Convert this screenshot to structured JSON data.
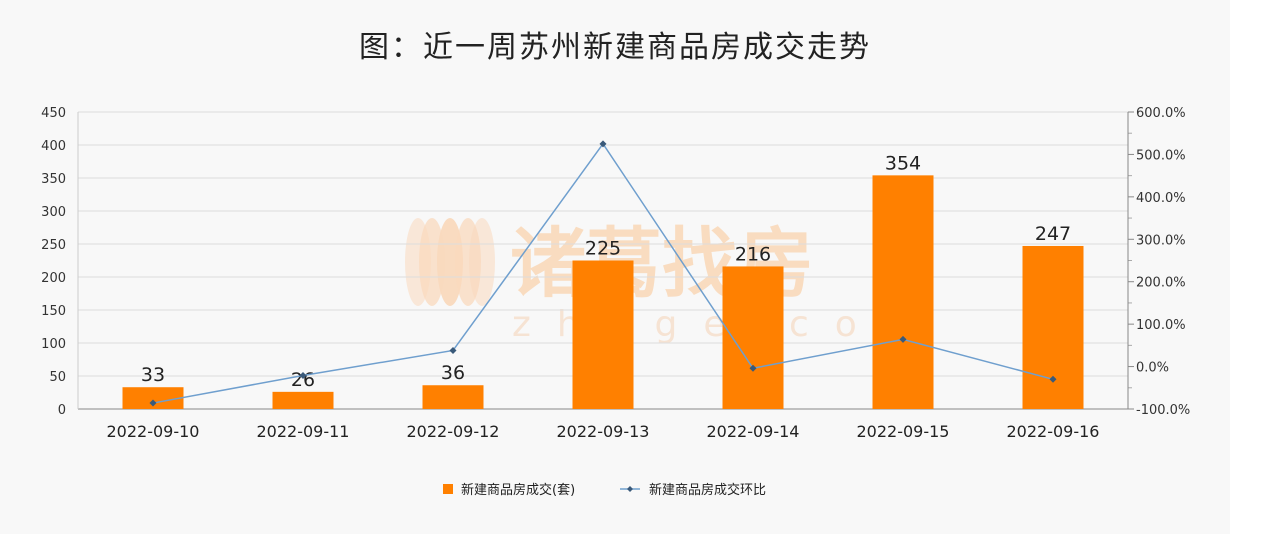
{
  "chart_data": {
    "type": "bar",
    "title": "图：近一周苏州新建商品房成交走势",
    "categories": [
      "2022-09-10",
      "2022-09-11",
      "2022-09-12",
      "2022-09-13",
      "2022-09-14",
      "2022-09-15",
      "2022-09-16"
    ],
    "series": [
      {
        "name": "新建商品房成交(套)",
        "type": "bar",
        "axis": "left",
        "values": [
          33,
          26,
          36,
          225,
          216,
          354,
          247
        ]
      },
      {
        "name": "新建商品房成交环比",
        "type": "line",
        "axis": "right",
        "values": [
          -86,
          -21,
          38,
          525,
          -4,
          64,
          -30
        ]
      }
    ],
    "y_left": {
      "min": 0,
      "max": 450,
      "ticks": [
        "0",
        "50",
        "100",
        "150",
        "200",
        "250",
        "300",
        "350",
        "400",
        "450"
      ]
    },
    "y_right": {
      "min": -100,
      "max": 600,
      "ticks": [
        "-100.0%",
        "0.0%",
        "100.0%",
        "200.0%",
        "300.0%",
        "400.0%",
        "500.0%",
        "600.0%"
      ]
    },
    "legend_position": "bottom",
    "grid": true,
    "colors": {
      "bar": "#ff8000",
      "line": "#6f9fce",
      "marker": "#3a5a7a"
    },
    "watermark": {
      "text": "诸葛找房",
      "sub": "zhuge.com"
    }
  }
}
